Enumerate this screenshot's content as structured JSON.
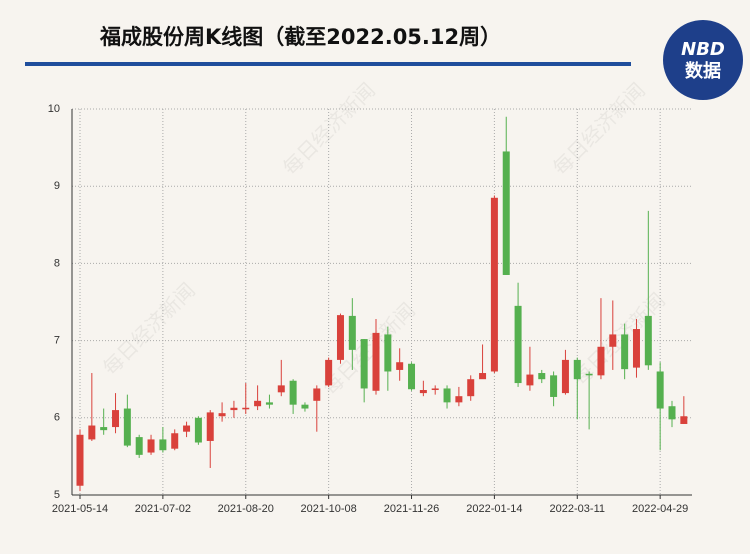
{
  "chart_data": {
    "type": "candlestick",
    "title": "福成股份周K线图（截至2022.05.12周）",
    "categories": [
      "2021-05-14",
      null,
      null,
      null,
      null,
      null,
      null,
      "2021-07-02",
      null,
      null,
      null,
      null,
      null,
      null,
      "2021-08-20",
      null,
      null,
      null,
      null,
      null,
      null,
      "2021-10-08",
      null,
      null,
      null,
      null,
      null,
      null,
      "2021-11-26",
      null,
      null,
      null,
      null,
      null,
      null,
      "2022-01-14",
      null,
      null,
      null,
      null,
      null,
      null,
      "2022-03-11",
      null,
      null,
      null,
      null,
      null,
      null,
      "2022-04-29",
      null,
      null
    ],
    "open": [
      5.12,
      5.72,
      5.88,
      5.88,
      6.12,
      5.75,
      5.55,
      5.72,
      5.6,
      5.82,
      6.0,
      5.7,
      6.02,
      6.1,
      6.11,
      6.15,
      6.2,
      6.33,
      6.48,
      6.17,
      6.22,
      6.42,
      6.75,
      7.32,
      7.02,
      6.35,
      7.08,
      6.62,
      6.7,
      6.32,
      6.36,
      6.38,
      6.2,
      6.28,
      6.5,
      6.6,
      9.45,
      7.45,
      6.42,
      6.58,
      6.55,
      6.32,
      6.75,
      6.57,
      6.55,
      6.92,
      7.08,
      6.65,
      7.32,
      6.6,
      6.15,
      5.92
    ],
    "high": [
      5.85,
      6.58,
      6.12,
      6.32,
      6.3,
      5.78,
      5.78,
      5.88,
      5.85,
      5.95,
      6.02,
      6.1,
      6.2,
      6.22,
      6.45,
      6.42,
      6.3,
      6.75,
      6.5,
      6.2,
      6.42,
      6.78,
      7.35,
      7.55,
      7.02,
      7.28,
      7.18,
      6.9,
      6.72,
      6.48,
      6.42,
      6.42,
      6.4,
      6.55,
      6.95,
      8.88,
      9.9,
      7.75,
      6.92,
      6.62,
      6.6,
      6.88,
      6.78,
      6.6,
      7.55,
      7.52,
      7.22,
      7.28,
      8.68,
      6.72,
      6.22,
      6.28
    ],
    "low": [
      5.05,
      5.7,
      5.78,
      5.8,
      5.62,
      5.48,
      5.52,
      5.55,
      5.58,
      5.75,
      5.65,
      5.35,
      5.95,
      6.0,
      6.05,
      6.1,
      6.12,
      6.28,
      6.05,
      6.08,
      5.82,
      6.4,
      6.7,
      6.62,
      6.2,
      6.3,
      6.35,
      6.48,
      6.35,
      6.28,
      6.3,
      6.12,
      6.15,
      6.22,
      6.52,
      6.58,
      7.85,
      6.4,
      6.35,
      6.45,
      6.15,
      6.3,
      5.98,
      5.85,
      6.5,
      6.62,
      6.5,
      6.52,
      6.62,
      5.58,
      5.88,
      5.92
    ],
    "close": [
      5.78,
      5.9,
      5.84,
      6.1,
      5.64,
      5.52,
      5.72,
      5.58,
      5.8,
      5.9,
      5.68,
      6.07,
      6.06,
      6.13,
      6.13,
      6.22,
      6.17,
      6.42,
      6.17,
      6.12,
      6.38,
      6.75,
      7.33,
      6.88,
      6.38,
      7.1,
      6.6,
      6.72,
      6.37,
      6.36,
      6.38,
      6.2,
      6.28,
      6.5,
      6.58,
      8.85,
      7.85,
      6.45,
      6.56,
      6.5,
      6.27,
      6.75,
      6.5,
      6.55,
      6.92,
      7.08,
      6.63,
      7.15,
      6.68,
      6.12,
      5.98,
      6.02
    ],
    "up_color": "#d9413b",
    "down_color": "#55b04f",
    "ylim": [
      5,
      10
    ],
    "yticks": [
      5,
      6,
      7,
      8,
      9,
      10
    ],
    "grid": true
  },
  "logo": {
    "top": "NBD",
    "bottom": "数据"
  },
  "watermark": "每日经济新闻"
}
